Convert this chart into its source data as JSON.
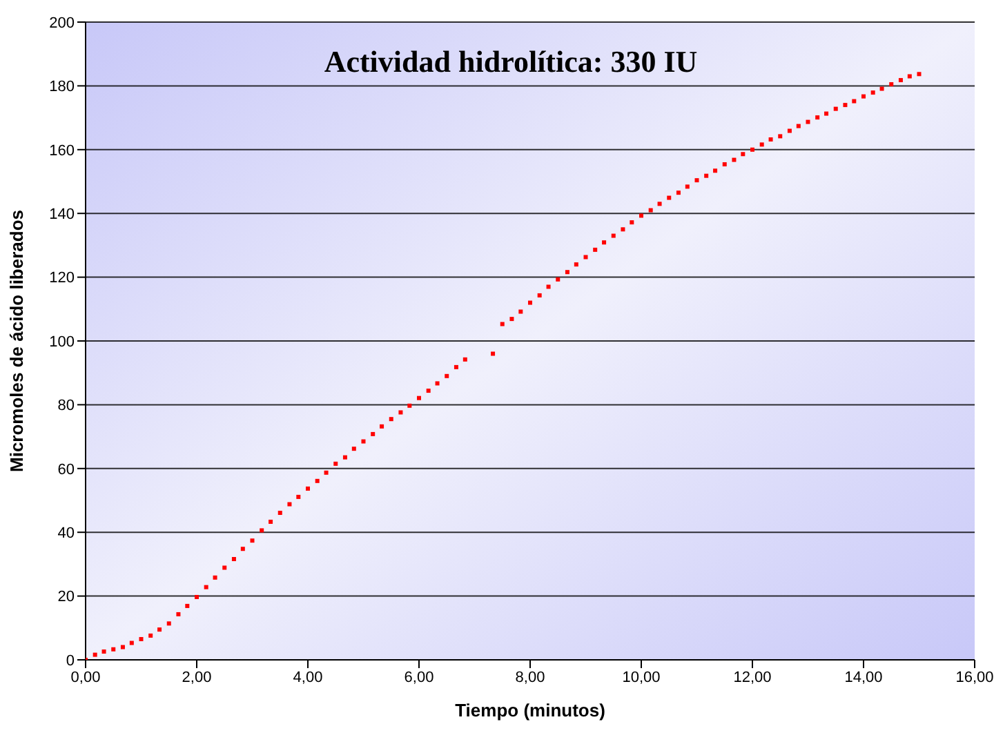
{
  "chart_data": {
    "type": "scatter",
    "title": "Actividad hidrolítica: 330 IU",
    "xlabel": "Tiempo (minutos)",
    "ylabel": "Micromoles de ácido liberados",
    "x": [
      0,
      0.17,
      0.33,
      0.5,
      0.67,
      0.83,
      1,
      1.17,
      1.33,
      1.5,
      1.67,
      1.83,
      2,
      2.17,
      2.33,
      2.5,
      2.67,
      2.83,
      3,
      3.17,
      3.33,
      3.5,
      3.67,
      3.83,
      4,
      4.17,
      4.33,
      4.5,
      4.67,
      4.83,
      5,
      5.17,
      5.33,
      5.5,
      5.67,
      5.83,
      6,
      6.17,
      6.33,
      6.5,
      6.67,
      6.83,
      7.33,
      7.5,
      7.67,
      7.83,
      8,
      8.17,
      8.33,
      8.5,
      8.67,
      8.83,
      9,
      9.17,
      9.33,
      9.5,
      9.67,
      9.83,
      10,
      10.17,
      10.33,
      10.5,
      10.67,
      10.83,
      11,
      11.17,
      11.33,
      11.5,
      11.67,
      11.83,
      12,
      12.17,
      12.33,
      12.5,
      12.67,
      12.83,
      13,
      13.17,
      13.33,
      13.5,
      13.67,
      13.83,
      14,
      14.17,
      14.33,
      14.5,
      14.67,
      14.83,
      15
    ],
    "series": [
      {
        "color": "#ff0000",
        "values": [
          0,
          1.6,
          2.6,
          3.3,
          4.0,
          5.3,
          6.5,
          7.6,
          9.5,
          11.4,
          14.3,
          16.9,
          19.7,
          22.8,
          25.8,
          28.9,
          31.6,
          34.8,
          37.4,
          40.6,
          43.3,
          46.1,
          48.8,
          51.1,
          53.7,
          56.1,
          58.7,
          61.5,
          63.5,
          66.2,
          68.5,
          70.8,
          73.2,
          75.5,
          77.6,
          79.7,
          82.1,
          84.4,
          86.7,
          89.0,
          91.8,
          94.2,
          96.0,
          105.3,
          106.9,
          109.2,
          112,
          114.3,
          117,
          119.3,
          121.6,
          124,
          126.3,
          128.6,
          130.9,
          133,
          135,
          137.2,
          139.3,
          141.0,
          143.0,
          144.9,
          146.5,
          148.4,
          150.4,
          151.8,
          153.4,
          155.4,
          156.8,
          158.6,
          160.0,
          161.6,
          163.2,
          164.2,
          165.9,
          167.4,
          168.7,
          170.1,
          171.3,
          172.8,
          174.0,
          175.2,
          176.7,
          177.9,
          179.1,
          180.5,
          181.8,
          183.0,
          183.7
        ]
      }
    ],
    "xlim": [
      0,
      16
    ],
    "xticks": [
      {
        "value": 0,
        "label": "0,00"
      },
      {
        "value": 2,
        "label": "2,00"
      },
      {
        "value": 4,
        "label": "4,00"
      },
      {
        "value": 6,
        "label": "6,00"
      },
      {
        "value": 8,
        "label": "8,00"
      },
      {
        "value": 10,
        "label": "10,00"
      },
      {
        "value": 12,
        "label": "12,00"
      },
      {
        "value": 14,
        "label": "14,00"
      },
      {
        "value": 16,
        "label": "16,00"
      }
    ],
    "ylim": [
      0,
      200
    ],
    "yticks": [
      0,
      20,
      40,
      60,
      80,
      100,
      120,
      140,
      160,
      180,
      200
    ],
    "grid": "y",
    "marker": "square",
    "legend": false
  }
}
